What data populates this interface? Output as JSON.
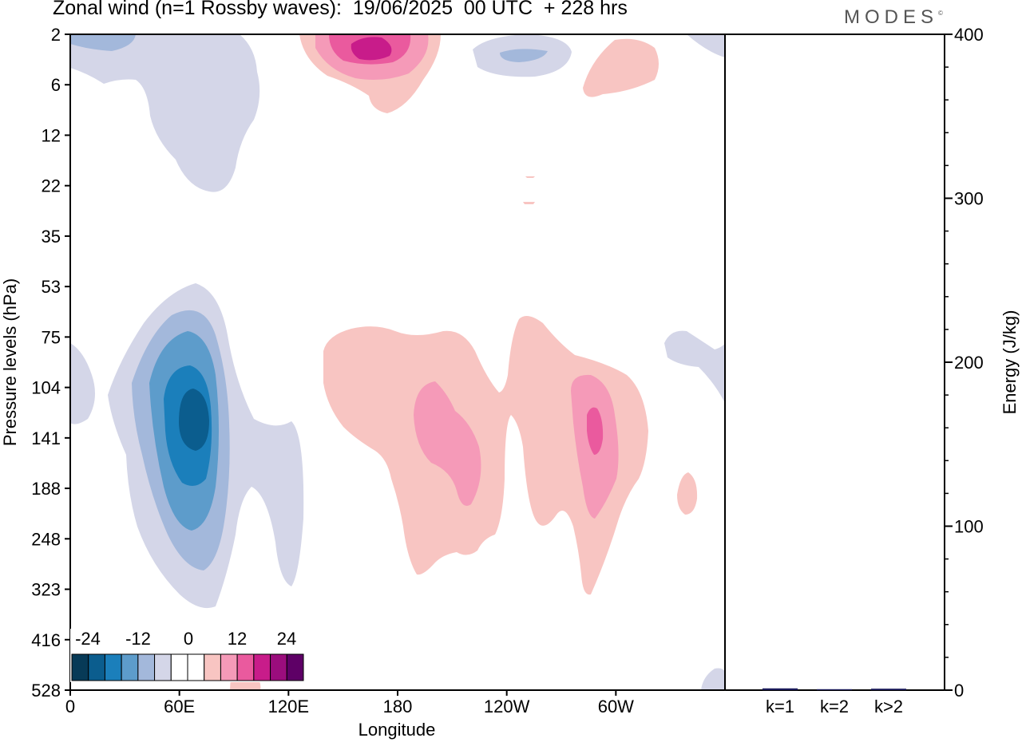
{
  "header": {
    "title": "Zonal wind (n=1 Rossby waves):  19/06/2025  00 UTC  + 228 hrs",
    "brand": "MODES",
    "brand_mark": "©"
  },
  "chart_data": [
    {
      "type": "heatmap",
      "title": "Zonal wind (n=1 Rossby waves):  19/06/2025  00 UTC  + 228 hrs",
      "xlabel": "Longitude",
      "ylabel": "Pressure levels (hPa)",
      "x_ticks": [
        "0",
        "60E",
        "120E",
        "180",
        "120W",
        "60W"
      ],
      "x_range": [
        "0",
        "360"
      ],
      "y_ticks": [
        "2",
        "6",
        "12",
        "22",
        "35",
        "53",
        "75",
        "104",
        "141",
        "188",
        "248",
        "323",
        "416",
        "528"
      ],
      "y_scale": "log-like (reversed, top = 2 hPa)",
      "colorbar": {
        "tick_labels": [
          "-24",
          "-12",
          "0",
          "12",
          "24"
        ],
        "colors": [
          "#073a57",
          "#0b5d8e",
          "#1b7fbb",
          "#5d9ccb",
          "#a3b8db",
          "#d4d6e8",
          "#ffffff",
          "#ffffff",
          "#f8c5c2",
          "#f59ab8",
          "#ea5a9e",
          "#c81c8a",
          "#9b0d7d",
          "#5e0066"
        ]
      },
      "features": [
        {
          "sign": "negative",
          "peak": -20,
          "lon": "~65E",
          "level_hpa": "~120"
        },
        {
          "sign": "positive",
          "peak": 9,
          "lon": "~200E",
          "level_hpa": "~141"
        },
        {
          "sign": "positive",
          "peak": 12,
          "lon": "~60W",
          "level_hpa": "~130"
        },
        {
          "sign": "positive",
          "peak": 16,
          "lon": "~165E",
          "level_hpa": "~2"
        },
        {
          "sign": "negative",
          "peak": -4,
          "lon": "~30E",
          "level_hpa": "~8"
        }
      ]
    },
    {
      "type": "bar",
      "categories": [
        "k=1",
        "k=2",
        "k>2"
      ],
      "values": [
        0.6,
        0.1,
        0.4
      ],
      "ylabel": "Energy (J/kg)",
      "ylim": [
        0,
        400
      ],
      "y_ticks": [
        "0",
        "100",
        "200",
        "300",
        "400"
      ]
    }
  ]
}
